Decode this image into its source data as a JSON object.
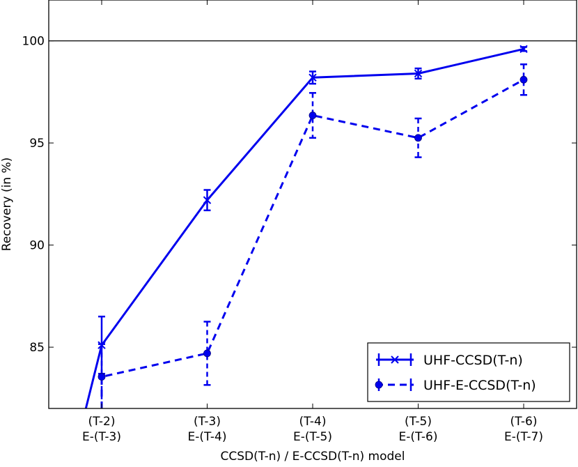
{
  "chart_data": {
    "type": "line",
    "title": "",
    "xlabel": "CCSD(T-n) / E-CCSD(T-n) model",
    "ylabel": "Recovery (in %)",
    "categories": [
      {
        "line1": "(T-2)",
        "line2": "E-(T-3)"
      },
      {
        "line1": "(T-3)",
        "line2": "E-(T-4)"
      },
      {
        "line1": "(T-4)",
        "line2": "E-(T-5)"
      },
      {
        "line1": "(T-5)",
        "line2": "E-(T-6)"
      },
      {
        "line1": "(T-6)",
        "line2": "E-(T-7)"
      }
    ],
    "ylim": [
      82,
      102
    ],
    "yticks": [
      {
        "value": 85,
        "label": "85"
      },
      {
        "value": 90,
        "label": "90"
      },
      {
        "value": 95,
        "label": "95"
      },
      {
        "value": 100,
        "label": "100"
      }
    ],
    "reference_line": 100,
    "grid": false,
    "legend_position": "lower-right",
    "series": [
      {
        "name": "UHF-CCSD(T-n)",
        "color": "#0000ee",
        "linestyle": "solid",
        "marker": "x",
        "values": [
          85.1,
          92.2,
          98.2,
          98.4,
          99.6
        ],
        "errors": [
          1.4,
          0.5,
          0.3,
          0.25,
          0.1
        ],
        "leading_segment": {
          "from_x": -0.15,
          "from_y": 82
        }
      },
      {
        "name": "UHF-E-CCSD(T-n)",
        "color": "#0000ee",
        "linestyle": "dashed",
        "marker": "circle",
        "values": [
          83.55,
          84.7,
          96.35,
          95.25,
          98.1
        ],
        "errors": [
          1.6,
          1.55,
          1.1,
          0.95,
          0.75
        ],
        "leading_segment": {
          "from_x": 0.0,
          "from_y": 82
        }
      }
    ]
  }
}
